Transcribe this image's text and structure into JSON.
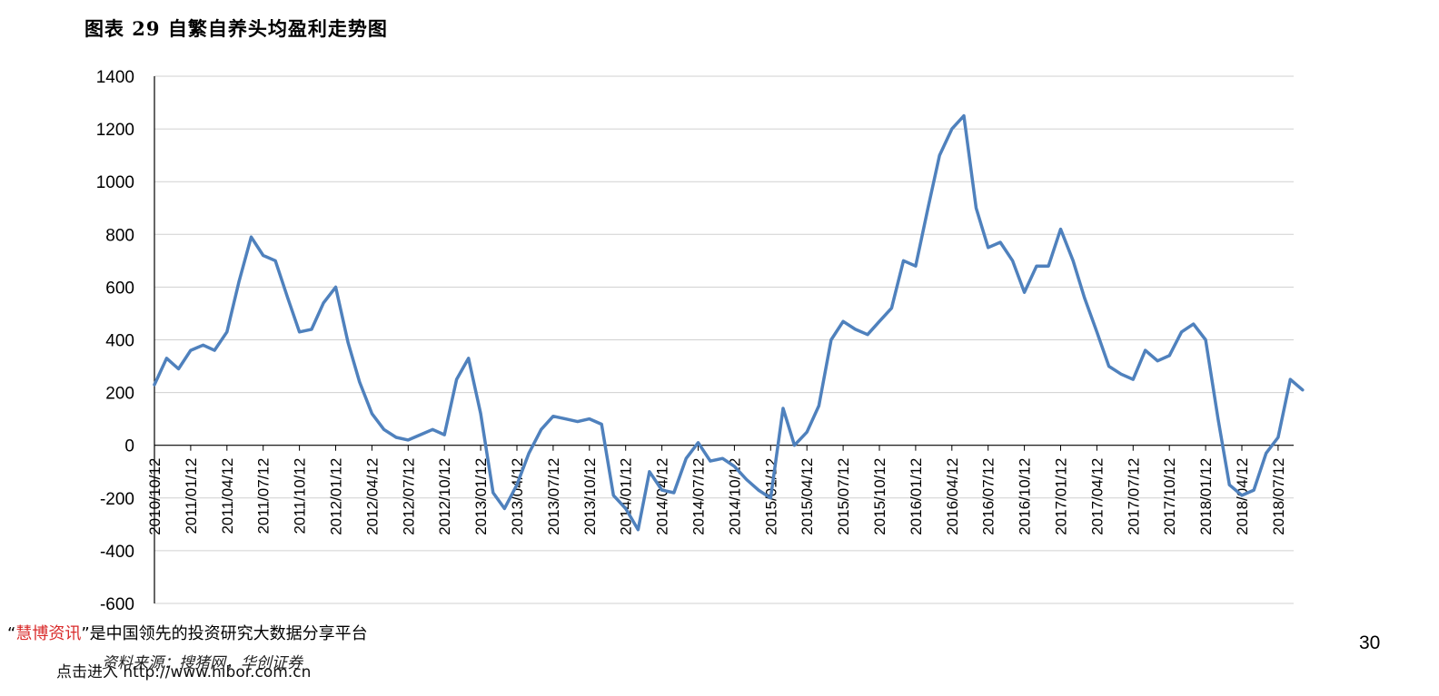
{
  "title": "图表 29 自繁自养头均盈利走势图",
  "footer": {
    "promo_quote_open": "“",
    "promo_brand": "慧博资讯",
    "promo_rest": "”是中国领先的投资研究大数据分享平台",
    "source": "资料来源：搜猪网，华创证券",
    "link": "点击进入 http://www.hibor.com.cn",
    "page_number": "30"
  },
  "chart_data": {
    "type": "line",
    "title": "图表 29 自繁自养头均盈利走势图",
    "xlabel": "",
    "ylabel": "",
    "ylim": [
      -600,
      1400
    ],
    "yticks": [
      1400,
      1200,
      1000,
      800,
      600,
      400,
      200,
      0,
      -200,
      -400,
      -600
    ],
    "xticks": [
      "2010/10/12",
      "2011/01/12",
      "2011/04/12",
      "2011/07/12",
      "2011/10/12",
      "2012/01/12",
      "2012/04/12",
      "2012/07/12",
      "2012/10/12",
      "2013/01/12",
      "2013/04/12",
      "2013/07/12",
      "2013/10/12",
      "2014/01/12",
      "2014/04/12",
      "2014/07/12",
      "2014/10/12",
      "2015/01/12",
      "2015/04/12",
      "2015/07/12",
      "2015/10/12",
      "2016/01/12",
      "2016/04/12",
      "2016/07/12",
      "2016/10/12",
      "2017/01/12",
      "2017/04/12",
      "2017/07/12",
      "2017/10/12",
      "2018/01/12",
      "2018/04/12",
      "2018/07/12"
    ],
    "grid": true,
    "line_color": "#4f81bd",
    "series": [
      {
        "x": [
          "2010/10/12",
          "2010/11/12",
          "2010/12/12",
          "2011/01/12",
          "2011/02/12",
          "2011/03/12",
          "2011/04/12",
          "2011/05/12",
          "2011/06/12",
          "2011/07/12",
          "2011/08/12",
          "2011/09/12",
          "2011/10/12",
          "2011/11/12",
          "2011/12/12",
          "2012/01/12",
          "2012/02/12",
          "2012/03/12",
          "2012/04/12",
          "2012/05/12",
          "2012/06/12",
          "2012/07/12",
          "2012/08/12",
          "2012/09/12",
          "2012/10/12",
          "2012/11/12",
          "2012/12/12",
          "2013/01/12",
          "2013/02/12",
          "2013/03/12",
          "2013/04/12",
          "2013/05/12",
          "2013/06/12",
          "2013/07/12",
          "2013/08/12",
          "2013/09/12",
          "2013/10/12",
          "2013/11/12",
          "2013/12/12",
          "2014/01/12",
          "2014/02/12",
          "2014/03/12",
          "2014/04/12",
          "2014/05/12",
          "2014/06/12",
          "2014/07/12",
          "2014/08/12",
          "2014/09/12",
          "2014/10/12",
          "2014/11/12",
          "2014/12/12",
          "2015/01/12",
          "2015/02/12",
          "2015/03/12",
          "2015/04/12",
          "2015/05/12",
          "2015/06/12",
          "2015/07/12",
          "2015/08/12",
          "2015/09/12",
          "2015/10/12",
          "2015/11/12",
          "2015/12/12",
          "2016/01/12",
          "2016/02/12",
          "2016/03/12",
          "2016/04/12",
          "2016/05/12",
          "2016/06/12",
          "2016/07/12",
          "2016/08/12",
          "2016/09/12",
          "2016/10/12",
          "2016/11/12",
          "2016/12/12",
          "2017/01/12",
          "2017/02/12",
          "2017/03/12",
          "2017/04/12",
          "2017/05/12",
          "2017/06/12",
          "2017/07/12",
          "2017/08/12",
          "2017/09/12",
          "2017/10/12",
          "2017/11/12",
          "2017/12/12",
          "2018/01/12",
          "2018/02/12",
          "2018/03/12",
          "2018/04/12",
          "2018/05/12",
          "2018/06/12",
          "2018/07/12",
          "2018/08/12",
          "2018/09/12"
        ],
        "values": [
          230,
          330,
          290,
          360,
          380,
          360,
          430,
          620,
          790,
          720,
          700,
          560,
          430,
          440,
          540,
          600,
          390,
          240,
          120,
          60,
          30,
          20,
          40,
          60,
          40,
          250,
          330,
          120,
          -180,
          -240,
          -150,
          -30,
          60,
          110,
          100,
          90,
          100,
          80,
          -190,
          -240,
          -320,
          -100,
          -170,
          -180,
          -50,
          10,
          -60,
          -50,
          -80,
          -130,
          -170,
          -200,
          140,
          0,
          50,
          150,
          400,
          470,
          440,
          420,
          470,
          520,
          700,
          680,
          900,
          1100,
          1200,
          1250,
          900,
          750,
          770,
          700,
          580,
          680,
          680,
          820,
          700,
          560,
          430,
          300,
          270,
          250,
          360,
          320,
          340,
          430,
          460,
          400,
          100,
          -150,
          -190,
          -170,
          -30,
          30,
          250,
          210
        ]
      }
    ]
  }
}
